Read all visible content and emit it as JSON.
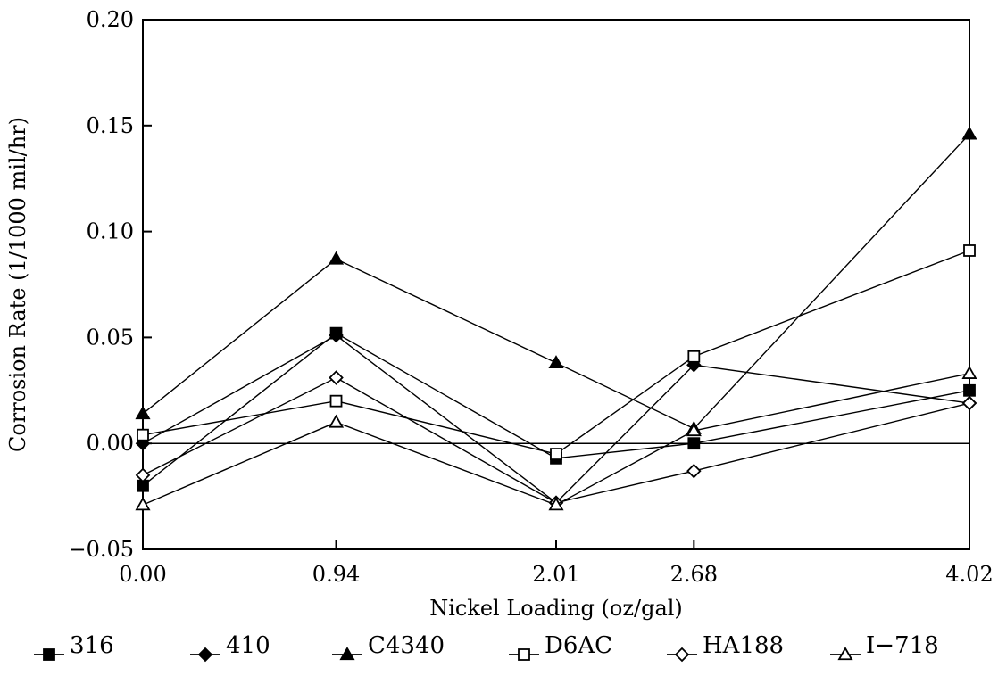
{
  "chart_data": {
    "type": "line",
    "title": "",
    "xlabel": "Nickel Loading (oz/gal)",
    "ylabel": "Corrosion Rate (1/1000 mil/hr)",
    "categories": [
      "0.00",
      "0.94",
      "2.01",
      "2.68",
      "4.02"
    ],
    "x": [
      0.0,
      0.94,
      2.01,
      2.68,
      4.02
    ],
    "ylim": [
      -0.05,
      0.2
    ],
    "yticks": [
      "−0.05",
      "0.00",
      "0.05",
      "0.10",
      "0.15",
      "0.20"
    ],
    "grid": false,
    "zero_line": true,
    "legend_position": "bottom",
    "series": [
      {
        "name": "316",
        "marker": "filled-square",
        "values": [
          -0.02,
          0.052,
          -0.007,
          0.0,
          0.025
        ]
      },
      {
        "name": "410",
        "marker": "filled-diamond",
        "values": [
          0.0,
          0.051,
          -0.028,
          0.037,
          0.019
        ]
      },
      {
        "name": "C4340",
        "marker": "filled-triangle",
        "values": [
          0.014,
          0.087,
          0.038,
          0.007,
          0.146
        ]
      },
      {
        "name": "D6AC",
        "marker": "open-square",
        "values": [
          0.004,
          0.02,
          -0.005,
          0.041,
          0.091
        ]
      },
      {
        "name": "HA188",
        "marker": "open-diamond",
        "values": [
          -0.015,
          0.031,
          -0.028,
          -0.013,
          0.019
        ]
      },
      {
        "name": "I−718",
        "marker": "open-triangle",
        "values": [
          -0.029,
          0.01,
          -0.029,
          0.006,
          0.033
        ]
      }
    ]
  }
}
